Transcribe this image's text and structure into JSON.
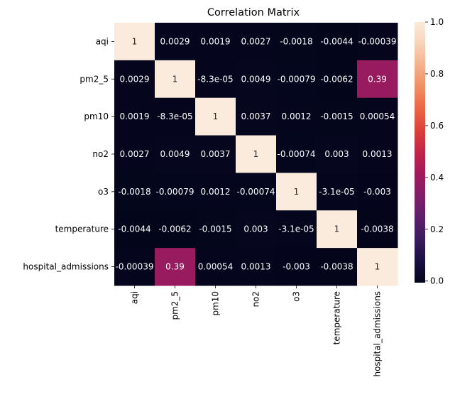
{
  "chart_data": {
    "type": "heatmap",
    "title": "Correlation Matrix",
    "x_categories": [
      "aqi",
      "pm2_5",
      "pm10",
      "no2",
      "o3",
      "temperature",
      "hospital_admissions"
    ],
    "y_categories": [
      "aqi",
      "pm2_5",
      "pm10",
      "no2",
      "o3",
      "temperature",
      "hospital_admissions"
    ],
    "values": [
      [
        1,
        0.0029,
        0.0019,
        0.0027,
        -0.0018,
        -0.0044,
        -0.00039
      ],
      [
        0.0029,
        1,
        -8.3e-05,
        0.0049,
        -0.00079,
        -0.0062,
        0.39
      ],
      [
        0.0019,
        -8.3e-05,
        1,
        0.0037,
        0.0012,
        -0.0015,
        0.00054
      ],
      [
        0.0027,
        0.0049,
        0.0037,
        1,
        -0.00074,
        0.003,
        0.0013
      ],
      [
        -0.0018,
        -0.00079,
        0.0012,
        -0.00074,
        1,
        -3.1e-05,
        -0.003
      ],
      [
        -0.0044,
        -0.0062,
        -0.0015,
        0.003,
        -3.1e-05,
        1,
        -0.0038
      ],
      [
        -0.00039,
        0.39,
        0.00054,
        0.0013,
        -0.003,
        -0.0038,
        1
      ]
    ],
    "annotations": [
      [
        "1",
        "0.0029",
        "0.0019",
        "0.0027",
        "-0.0018",
        "-0.0044",
        "-0.00039"
      ],
      [
        "0.0029",
        "1",
        "-8.3e-05",
        "0.0049",
        "-0.00079",
        "-0.0062",
        "0.39"
      ],
      [
        "0.0019",
        "-8.3e-05",
        "1",
        "0.0037",
        "0.0012",
        "-0.0015",
        "0.00054"
      ],
      [
        "0.0027",
        "0.0049",
        "0.0037",
        "1",
        "-0.00074",
        "0.003",
        "0.0013"
      ],
      [
        "-0.0018",
        "-0.00079",
        "0.0012",
        "-0.00074",
        "1",
        "-3.1e-05",
        "-0.003"
      ],
      [
        "-0.0044",
        "-0.0062",
        "-0.0015",
        "0.003",
        "-3.1e-05",
        "1",
        "-0.0038"
      ],
      [
        "-0.00039",
        "0.39",
        "0.00054",
        "0.0013",
        "-0.003",
        "-0.0038",
        "1"
      ]
    ],
    "colorbar": {
      "range": [
        -0.0062,
        1
      ],
      "ticks": [
        0.0,
        0.2,
        0.4,
        0.6,
        0.8,
        1.0
      ],
      "tick_labels": [
        "0.0",
        "0.2",
        "0.4",
        "0.6",
        "0.8",
        "1.0"
      ]
    },
    "colormap": "rocket",
    "colormap_stops": [
      "#03051a",
      "#1a1042",
      "#3b1c5e",
      "#5d1f6d",
      "#811f6a",
      "#a11a5b",
      "#c2244a",
      "#dc3f3a",
      "#ea6543",
      "#f08e62",
      "#f4b18c",
      "#f7d3b8",
      "#faebdd"
    ]
  }
}
